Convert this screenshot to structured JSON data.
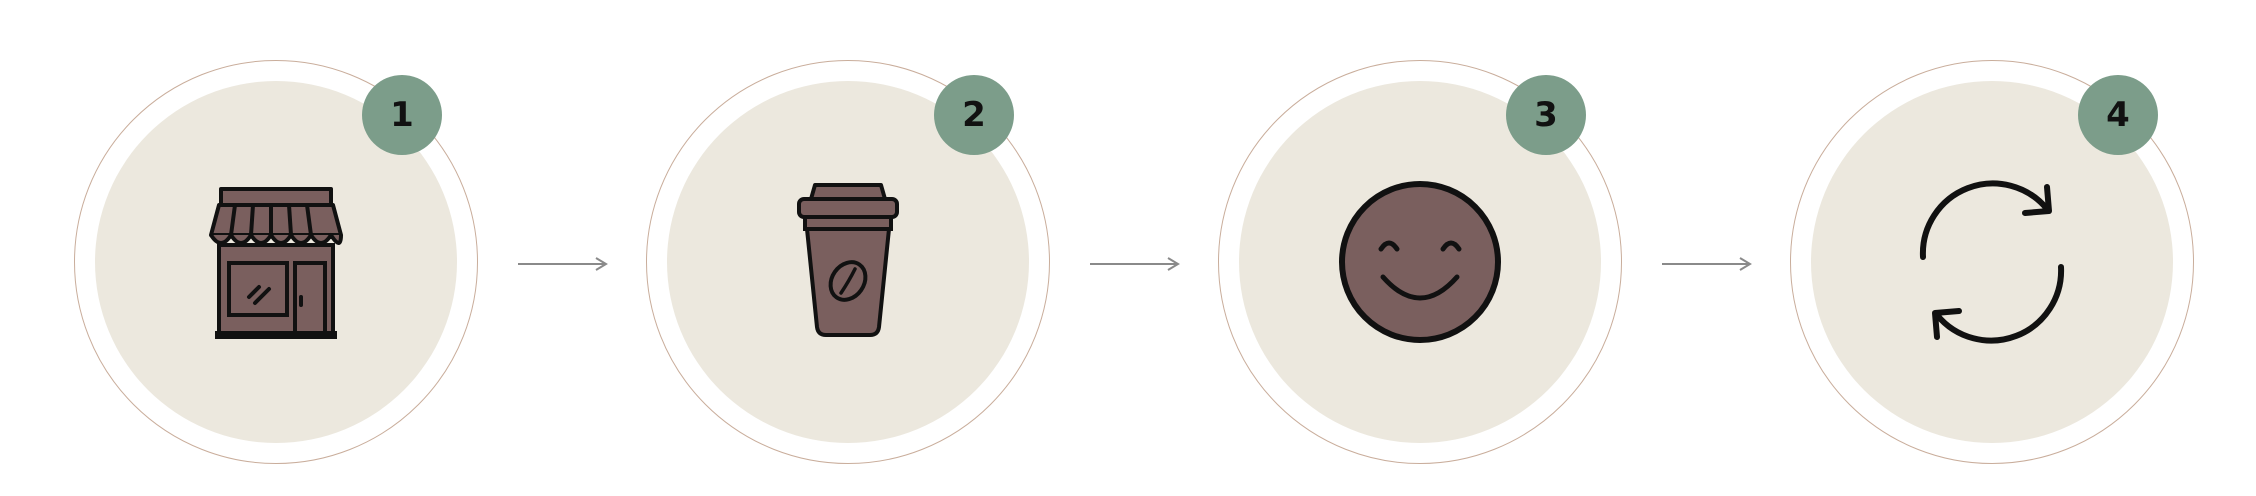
{
  "steps": [
    {
      "number": "1",
      "icon": "storefront-icon"
    },
    {
      "number": "2",
      "icon": "coffee-cup-icon"
    },
    {
      "number": "3",
      "icon": "smiley-face-icon"
    },
    {
      "number": "4",
      "icon": "refresh-cycle-icon"
    }
  ],
  "colors": {
    "badge": "#7c9d8a",
    "inner_circle": "#ece8de",
    "ring": "#c9ad9b",
    "icon_fill": "#7a5f5e",
    "arrow": "#8a8a8a"
  }
}
